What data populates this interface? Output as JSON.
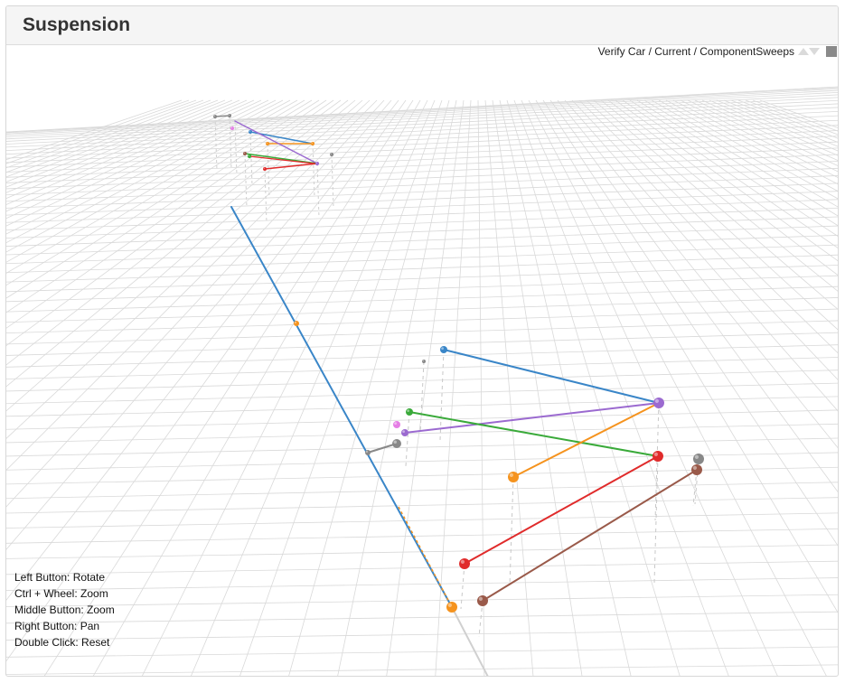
{
  "header": {
    "title": "Suspension"
  },
  "toolbar": {
    "breadcrumb": "Verify Car / Current / ComponentSweeps",
    "prev_icon": "triangle-up-icon",
    "next_icon": "triangle-down-icon",
    "stop_icon": "square-icon"
  },
  "help": {
    "lines": [
      "Left Button: Rotate",
      "Ctrl + Wheel: Zoom",
      "Middle Button: Zoom",
      "Right Button: Pan",
      "Double Click: Reset"
    ]
  },
  "colors": {
    "blue": "#3a86c8",
    "orange": "#f5931e",
    "purple": "#9b6ad0",
    "green": "#3aaa3a",
    "red": "#e02b2b",
    "brown": "#9a5a4a",
    "gray": "#888888",
    "pink": "#e57ee5",
    "grid": "#d9d9d9"
  }
}
